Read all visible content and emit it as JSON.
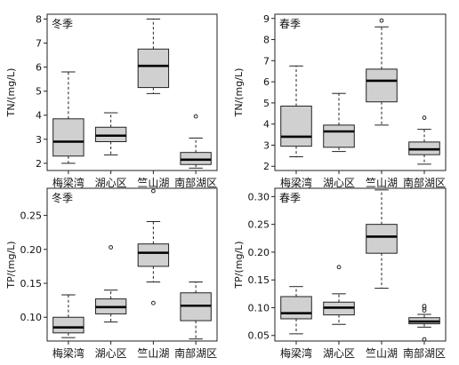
{
  "chart_data": [
    {
      "type": "boxplot",
      "panel": "top-left",
      "annotation": "冬季",
      "ylabel": "TN/(mg/L)",
      "xlabel": "",
      "ylim": [
        1.7,
        8.2
      ],
      "yticks": [
        2,
        3,
        4,
        5,
        6,
        7,
        8
      ],
      "ytick_labels": [
        "2",
        "3",
        "4",
        "5",
        "6",
        "7",
        "8"
      ],
      "categories": [
        "梅梁湾",
        "湖心区",
        "竺山湖",
        "南部湖区"
      ],
      "boxes": [
        {
          "min": 2.0,
          "q1": 2.3,
          "median": 2.9,
          "q3": 3.85,
          "max": 5.8,
          "outliers": []
        },
        {
          "min": 2.35,
          "q1": 2.9,
          "median": 3.15,
          "q3": 3.5,
          "max": 4.1,
          "outliers": []
        },
        {
          "min": 4.9,
          "q1": 5.15,
          "median": 6.05,
          "q3": 6.75,
          "max": 8.0,
          "outliers": []
        },
        {
          "min": 1.8,
          "q1": 1.95,
          "median": 2.15,
          "q3": 2.45,
          "max": 3.05,
          "outliers": [
            3.95
          ]
        }
      ]
    },
    {
      "type": "boxplot",
      "panel": "top-right",
      "annotation": "春季",
      "ylabel": "TN/(mg/L)",
      "xlabel": "",
      "ylim": [
        1.8,
        9.2
      ],
      "yticks": [
        2,
        3,
        4,
        5,
        6,
        7,
        8,
        9
      ],
      "ytick_labels": [
        "2",
        "3",
        "4",
        "5",
        "6",
        "7",
        "8",
        "9"
      ],
      "categories": [
        "梅梁湾",
        "湖心区",
        "竺山湖",
        "南部湖区"
      ],
      "boxes": [
        {
          "min": 2.45,
          "q1": 2.95,
          "median": 3.4,
          "q3": 4.85,
          "max": 6.75,
          "outliers": []
        },
        {
          "min": 2.7,
          "q1": 2.9,
          "median": 3.65,
          "q3": 3.95,
          "max": 5.45,
          "outliers": []
        },
        {
          "min": 3.95,
          "q1": 5.05,
          "median": 6.05,
          "q3": 6.6,
          "max": 8.6,
          "outliers": [
            8.9
          ]
        },
        {
          "min": 2.1,
          "q1": 2.55,
          "median": 2.8,
          "q3": 3.15,
          "max": 3.75,
          "outliers": [
            4.3
          ]
        }
      ]
    },
    {
      "type": "boxplot",
      "panel": "bottom-left",
      "annotation": "冬季",
      "ylabel": "TP/(mg/L)",
      "xlabel": "",
      "ylim": [
        0.065,
        0.29
      ],
      "yticks": [
        0.1,
        0.15,
        0.2,
        0.25
      ],
      "ytick_labels": [
        "0.10",
        "0.15",
        "0.20",
        "0.25"
      ],
      "categories": [
        "梅梁湾",
        "湖心区",
        "竺山湖",
        "南部湖区"
      ],
      "boxes": [
        {
          "min": 0.07,
          "q1": 0.077,
          "median": 0.085,
          "q3": 0.1,
          "max": 0.133,
          "outliers": []
        },
        {
          "min": 0.093,
          "q1": 0.105,
          "median": 0.115,
          "q3": 0.127,
          "max": 0.14,
          "outliers": [
            0.203
          ]
        },
        {
          "min": 0.152,
          "q1": 0.175,
          "median": 0.195,
          "q3": 0.208,
          "max": 0.241,
          "outliers": [
            0.121,
            0.286
          ]
        },
        {
          "min": 0.068,
          "q1": 0.095,
          "median": 0.117,
          "q3": 0.136,
          "max": 0.152,
          "outliers": []
        }
      ]
    },
    {
      "type": "boxplot",
      "panel": "bottom-right",
      "annotation": "春季",
      "ylabel": "TP/(mg/L)",
      "xlabel": "",
      "ylim": [
        0.04,
        0.315
      ],
      "yticks": [
        0.05,
        0.1,
        0.15,
        0.2,
        0.25,
        0.3
      ],
      "ytick_labels": [
        "0.05",
        "0.10",
        "0.15",
        "0.20",
        "0.25",
        "0.30"
      ],
      "categories": [
        "梅梁湾",
        "湖心区",
        "竺山湖",
        "南部湖区"
      ],
      "boxes": [
        {
          "min": 0.053,
          "q1": 0.08,
          "median": 0.09,
          "q3": 0.12,
          "max": 0.138,
          "outliers": []
        },
        {
          "min": 0.07,
          "q1": 0.087,
          "median": 0.1,
          "q3": 0.11,
          "max": 0.125,
          "outliers": [
            0.173
          ]
        },
        {
          "min": 0.135,
          "q1": 0.198,
          "median": 0.228,
          "q3": 0.25,
          "max": 0.312,
          "outliers": []
        },
        {
          "min": 0.065,
          "q1": 0.071,
          "median": 0.075,
          "q3": 0.082,
          "max": 0.088,
          "outliers": [
            0.095,
            0.1,
            0.103,
            0.043
          ]
        }
      ]
    }
  ]
}
